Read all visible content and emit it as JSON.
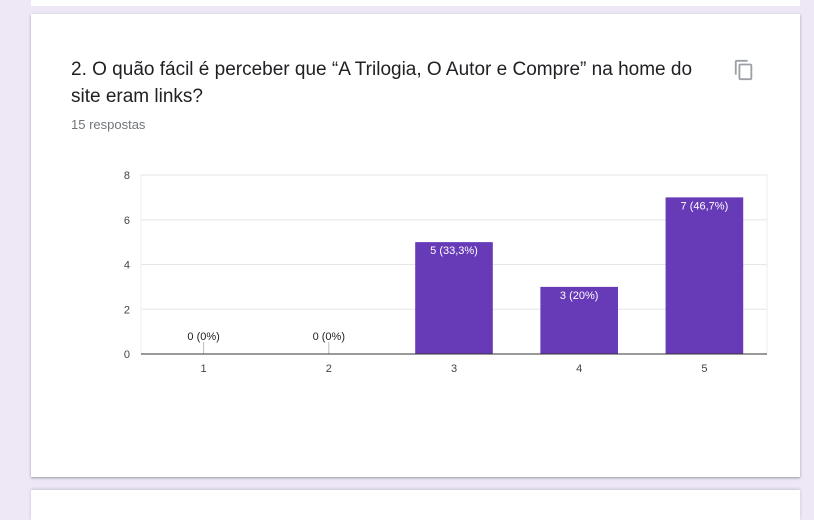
{
  "question": {
    "title": "2. O quão fácil é perceber que “A Trilogia, O Autor e Compre” na home do site eram links?",
    "responses": "15 respostas",
    "copy_icon": "copy-icon"
  },
  "colors": {
    "bar": "#673ab7",
    "background": "#ede7f6",
    "card": "#ffffff"
  },
  "chart_data": {
    "type": "bar",
    "categories": [
      "1",
      "2",
      "3",
      "4",
      "5"
    ],
    "values": [
      0,
      0,
      5,
      3,
      7
    ],
    "data_labels": [
      "0 (0%)",
      "0 (0%)",
      "5 (33,3%)",
      "3 (20%)",
      "7 (46,7%)"
    ],
    "y_ticks": [
      "0",
      "2",
      "4",
      "6",
      "8"
    ],
    "ylim": [
      0,
      8
    ],
    "grid": true,
    "title": "",
    "xlabel": "",
    "ylabel": ""
  }
}
